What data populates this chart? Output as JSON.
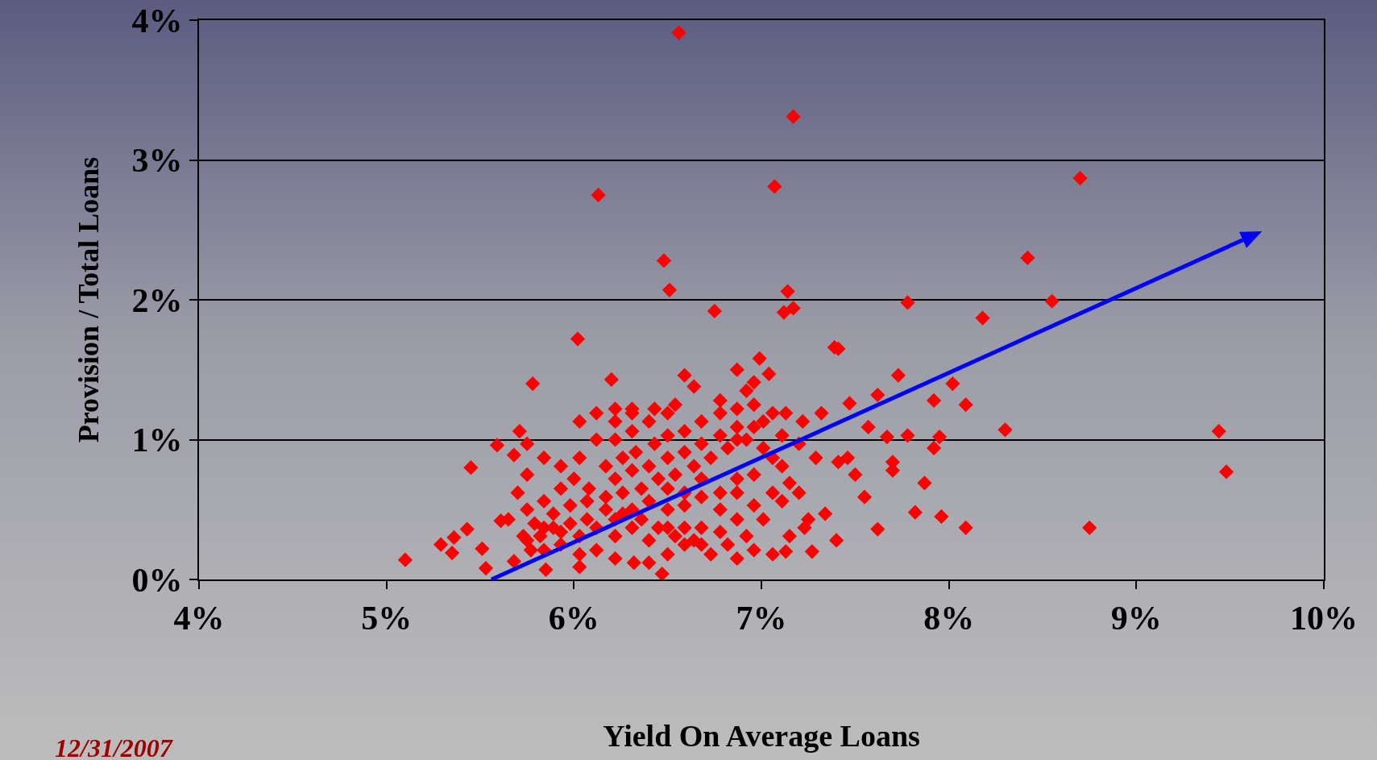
{
  "chart_data": {
    "type": "scatter",
    "xlabel": "Yield On Average Loans",
    "ylabel": "Provision / Total Loans",
    "xlim": [
      4,
      10
    ],
    "xticks": [
      {
        "value": 4,
        "label": "4%"
      },
      {
        "value": 5,
        "label": "5%"
      },
      {
        "value": 6,
        "label": "6%"
      },
      {
        "value": 7,
        "label": "7%"
      },
      {
        "value": 8,
        "label": "8%"
      },
      {
        "value": 9,
        "label": "9%"
      },
      {
        "value": 10,
        "label": "10%"
      }
    ],
    "ylim": [
      0,
      4
    ],
    "yticks": [
      {
        "value": 0,
        "label": "0%"
      },
      {
        "value": 1,
        "label": "1%"
      },
      {
        "value": 2,
        "label": "2%"
      },
      {
        "value": 3,
        "label": "3%"
      },
      {
        "value": 4,
        "label": "4%"
      }
    ],
    "grid": "y",
    "marker": "diamond",
    "annotations": [
      "12/31/2007"
    ],
    "series": [
      {
        "color": "#ff0000",
        "x": [
          6.56,
          7.17,
          7.07,
          6.13,
          8.7,
          6.48,
          6.51,
          8.42,
          8.55,
          7.78,
          7.14,
          7.17,
          7.12,
          6.75,
          8.18,
          6.02,
          7.39,
          7.41,
          6.99,
          7.73,
          8.02,
          6.87,
          6.59,
          5.78,
          6.2,
          7.92,
          8.09,
          8.3,
          9.44,
          9.48,
          8.75,
          7.96,
          8.09,
          7.82,
          7.87,
          7.95,
          7.92,
          7.78,
          7.62,
          7.47,
          5.45,
          5.1,
          5.29,
          5.36,
          5.35,
          5.43,
          5.51,
          5.53,
          5.59,
          5.71,
          5.75,
          5.68,
          5.61,
          7.62,
          7.4,
          7.34,
          7.27,
          7.13,
          7.23,
          7.55,
          7.46,
          7.5,
          7.7,
          7.57,
          7.67,
          7.7,
          7.41,
          7.32,
          6.47,
          6.32,
          5.85,
          5.68,
          5.84,
          5.93,
          6.0,
          6.08,
          6.17,
          6.26,
          6.33,
          6.43,
          6.5,
          6.59,
          6.68,
          6.78,
          6.87,
          6.96,
          7.06,
          6.22,
          6.31,
          6.43,
          6.54,
          6.64,
          6.78,
          6.92,
          7.01,
          7.11,
          7.2,
          7.29,
          7.06,
          6.96,
          6.87,
          6.78,
          6.68,
          6.59,
          6.5,
          6.4,
          6.31,
          6.22,
          6.12,
          6.03,
          5.93,
          5.84,
          5.75,
          5.79,
          5.89,
          5.98,
          6.07,
          6.17,
          6.26,
          6.36,
          6.45,
          6.54,
          6.64,
          6.73,
          6.82,
          6.92,
          7.01,
          7.11,
          7.15,
          7.06,
          6.96,
          6.87,
          6.78,
          6.68,
          6.59,
          6.5,
          6.4,
          6.31,
          6.22,
          6.12,
          6.03,
          5.93,
          5.84,
          5.75,
          5.7,
          5.93,
          6.03,
          6.12,
          6.22,
          6.31,
          6.4,
          6.5,
          6.12,
          6.22,
          6.31,
          6.03,
          6.82,
          6.92,
          7.01,
          7.11,
          7.2,
          7.25,
          7.15,
          7.06,
          6.96,
          6.87,
          6.73,
          6.64,
          6.54,
          6.45,
          6.36,
          6.26,
          6.17,
          6.07,
          5.98,
          5.89,
          5.82,
          6.22,
          6.31,
          6.4,
          6.5,
          6.59,
          6.68,
          6.78,
          6.87,
          6.96,
          6.5,
          6.59,
          6.68,
          6.78,
          6.87,
          6.68,
          6.59,
          6.5,
          6.4,
          6.22,
          6.03,
          7.04,
          7.13,
          7.22,
          6.96,
          6.87,
          5.75,
          5.84,
          5.65,
          5.73,
          5.77
        ],
        "values": [
          3.91,
          3.31,
          2.81,
          2.75,
          2.87,
          2.28,
          2.07,
          2.3,
          1.99,
          1.98,
          2.06,
          1.94,
          1.91,
          1.92,
          1.87,
          1.72,
          1.66,
          1.65,
          1.58,
          1.46,
          1.4,
          1.5,
          1.46,
          1.4,
          1.43,
          1.28,
          1.25,
          1.07,
          1.06,
          0.77,
          0.37,
          0.45,
          0.37,
          0.48,
          0.69,
          1.02,
          0.94,
          1.03,
          1.32,
          1.26,
          0.8,
          0.14,
          0.25,
          0.3,
          0.19,
          0.36,
          0.22,
          0.08,
          0.96,
          1.06,
          0.97,
          0.89,
          0.42,
          0.36,
          0.28,
          0.47,
          0.2,
          0.2,
          0.37,
          0.59,
          0.87,
          0.75,
          0.84,
          1.09,
          1.02,
          0.78,
          0.84,
          1.19,
          0.04,
          0.12,
          0.07,
          0.13,
          0.56,
          0.65,
          0.72,
          0.65,
          0.81,
          0.87,
          0.91,
          0.97,
          1.03,
          1.06,
          1.13,
          1.19,
          1.22,
          1.25,
          1.19,
          1.13,
          1.19,
          1.22,
          1.25,
          1.38,
          1.28,
          1.35,
          1.13,
          1.03,
          0.97,
          0.87,
          0.87,
          0.75,
          0.62,
          0.5,
          0.37,
          0.25,
          0.18,
          0.28,
          0.37,
          0.43,
          0.37,
          0.31,
          0.25,
          0.21,
          0.28,
          0.4,
          0.47,
          0.53,
          0.56,
          0.59,
          0.62,
          0.65,
          0.72,
          0.75,
          0.81,
          0.87,
          0.94,
          1.0,
          0.94,
          0.81,
          0.69,
          0.62,
          0.53,
          0.43,
          0.34,
          0.25,
          0.37,
          0.5,
          0.56,
          0.5,
          0.31,
          0.21,
          0.18,
          0.34,
          0.37,
          0.5,
          0.62,
          0.81,
          0.87,
          1.0,
          1.0,
          1.06,
          1.13,
          1.19,
          1.19,
          1.22,
          1.22,
          1.13,
          0.25,
          0.31,
          0.43,
          0.56,
          0.62,
          0.43,
          0.31,
          0.18,
          0.21,
          0.15,
          0.18,
          0.28,
          0.31,
          0.37,
          0.43,
          0.47,
          0.5,
          0.43,
          0.4,
          0.37,
          0.31,
          0.72,
          0.78,
          0.81,
          0.87,
          0.91,
          0.97,
          1.03,
          1.09,
          1.09,
          0.65,
          0.62,
          0.59,
          0.62,
          0.72,
          0.72,
          0.53,
          0.37,
          0.12,
          0.15,
          0.09,
          1.47,
          1.19,
          1.13,
          1.41,
          1.0,
          0.75,
          0.87,
          0.43,
          0.31,
          0.21
        ]
      }
    ]
  }
}
